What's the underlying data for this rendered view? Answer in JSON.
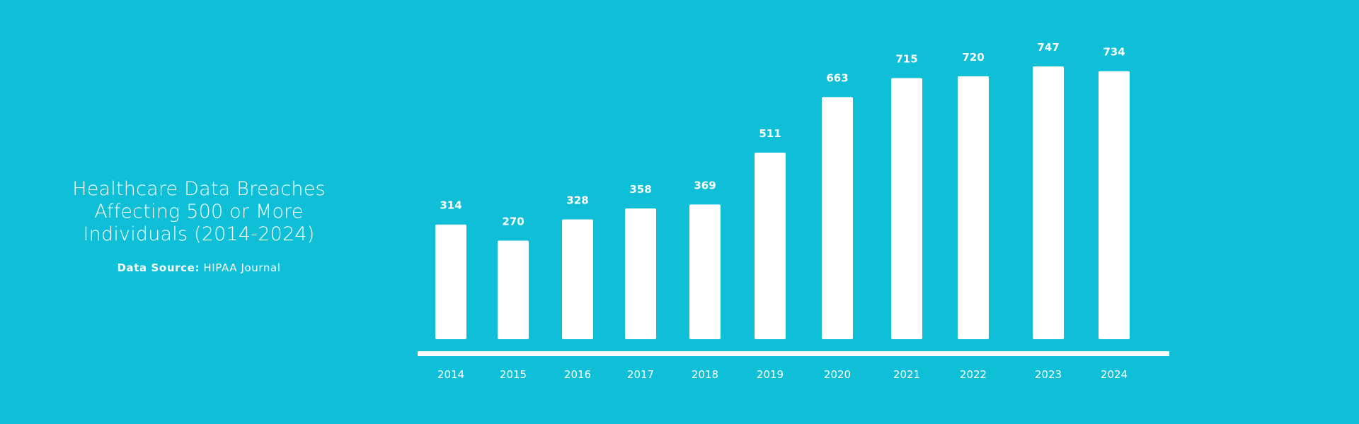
{
  "title_block": {
    "lines": [
      "Healthcare Data Breaches",
      "Affecting 500 or More",
      "Individuals (2014-2024)"
    ],
    "source_label": "Data Source:",
    "source_value": "HIPAA Journal"
  },
  "chart_data": {
    "type": "bar",
    "title": "Healthcare Data Breaches Affecting 500 or More Individuals (2014-2024)",
    "categories": [
      "2014",
      "2015",
      "2016",
      "2017",
      "2018",
      "2019",
      "2020",
      "2021",
      "2022",
      "2023",
      "2024"
    ],
    "values": [
      314,
      270,
      328,
      358,
      369,
      511,
      663,
      715,
      720,
      747,
      734
    ],
    "xlabel": "",
    "ylabel": "",
    "ylim": [
      0,
      747
    ],
    "grid": false,
    "legend": "none",
    "data_labels": true,
    "colors": {
      "background": "#0ebfd7",
      "bar": "#ffffff",
      "text": "#ffffff",
      "baseline": "#ffffff"
    }
  }
}
